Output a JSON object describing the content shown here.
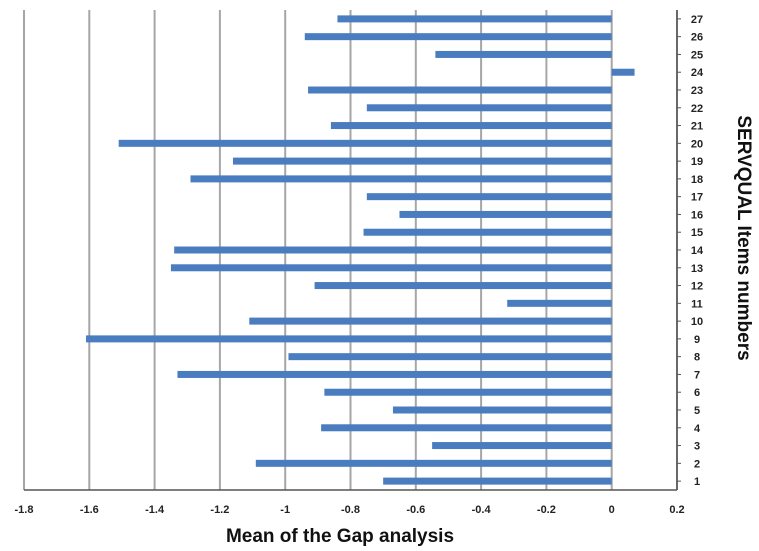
{
  "chart_data": {
    "type": "bar",
    "orientation": "horizontal",
    "xlabel": "Mean of the Gap analysis",
    "ylabel": "SERVQUAL Items numbers",
    "xlim": [
      -1.8,
      0.2
    ],
    "x_ticks": [
      "-1.8",
      "-1.6",
      "-1.4",
      "-1.2",
      "-1",
      "-0.8",
      "-0.6",
      "-0.4",
      "-0.2",
      "0",
      "0.2"
    ],
    "grid": "vertical",
    "bar_color": "#4a7cc0",
    "grid_color": "#a6a6a6",
    "categories": [
      "1",
      "2",
      "3",
      "4",
      "5",
      "6",
      "7",
      "8",
      "9",
      "10",
      "11",
      "12",
      "13",
      "14",
      "15",
      "16",
      "17",
      "18",
      "19",
      "20",
      "21",
      "22",
      "23",
      "24",
      "25",
      "26",
      "27"
    ],
    "values": [
      -0.7,
      -1.09,
      -0.55,
      -0.89,
      -0.67,
      -0.88,
      -1.33,
      -0.99,
      -1.61,
      -1.11,
      -0.32,
      -0.91,
      -1.35,
      -1.34,
      -0.76,
      -0.65,
      -0.75,
      -1.29,
      -1.16,
      -1.51,
      -0.86,
      -0.75,
      -0.93,
      0.07,
      -0.54,
      -0.94,
      -0.84
    ]
  }
}
